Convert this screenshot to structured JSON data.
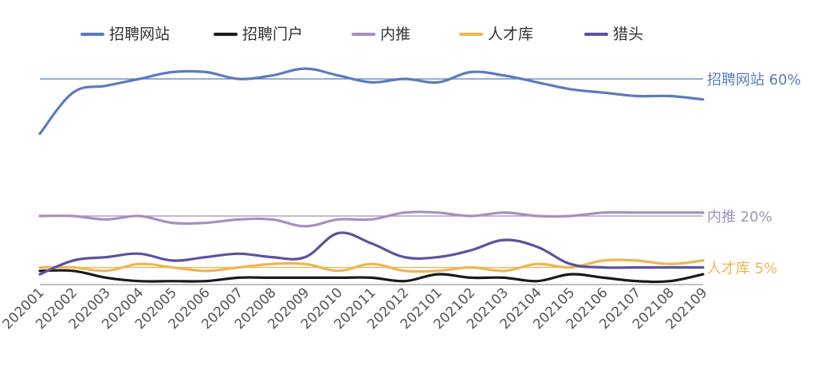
{
  "chart_data": {
    "type": "line",
    "title": "",
    "xlabel": "",
    "ylabel": "",
    "legend_position": "top",
    "grid": false,
    "ylim": [
      0,
      100
    ],
    "categories": [
      "202001",
      "202002",
      "202003",
      "202004",
      "202005",
      "202006",
      "202007",
      "202008",
      "202009",
      "202010",
      "202011",
      "202012",
      "202101",
      "202102",
      "202103",
      "202104",
      "202105",
      "202106",
      "202107",
      "202108",
      "202109"
    ],
    "series": [
      {
        "name": "招聘网站",
        "color": "#5b7bbf",
        "values": [
          44,
          56,
          58,
          60,
          62,
          62,
          60,
          61,
          63,
          61,
          59,
          60,
          59,
          62,
          61,
          59,
          57,
          56,
          55,
          55,
          54
        ]
      },
      {
        "name": "招聘门户",
        "color": "#1a1a1a",
        "values": [
          4,
          4,
          2,
          1,
          1,
          1,
          2,
          2,
          2,
          2,
          2,
          1,
          3,
          2,
          2,
          1,
          3,
          2,
          1,
          1,
          3
        ]
      },
      {
        "name": "内推",
        "color": "#a58fc0",
        "values": [
          20,
          20,
          19,
          20,
          18,
          18,
          19,
          19,
          17,
          19,
          19,
          21,
          21,
          20,
          21,
          20,
          20,
          21,
          21,
          21,
          21
        ]
      },
      {
        "name": "人才库",
        "color": "#f0b452",
        "values": [
          5,
          5,
          4,
          6,
          5,
          4,
          5,
          6,
          6,
          4,
          6,
          4,
          4,
          5,
          4,
          6,
          5,
          7,
          7,
          6,
          7
        ]
      },
      {
        "name": "猎头",
        "color": "#5c52a0",
        "values": [
          3,
          7,
          8,
          9,
          7,
          8,
          9,
          8,
          8,
          15,
          12,
          8,
          8,
          10,
          13,
          11,
          6,
          5,
          5,
          5,
          5
        ]
      }
    ],
    "reference_lines": [
      {
        "value": 60,
        "label": "招聘网站 60%",
        "color": "#5b7bbf"
      },
      {
        "value": 20,
        "label": "内推 20%",
        "color": "#a58fc0"
      },
      {
        "value": 5,
        "label": "人才库 5%",
        "color": "#f0b452"
      }
    ]
  }
}
